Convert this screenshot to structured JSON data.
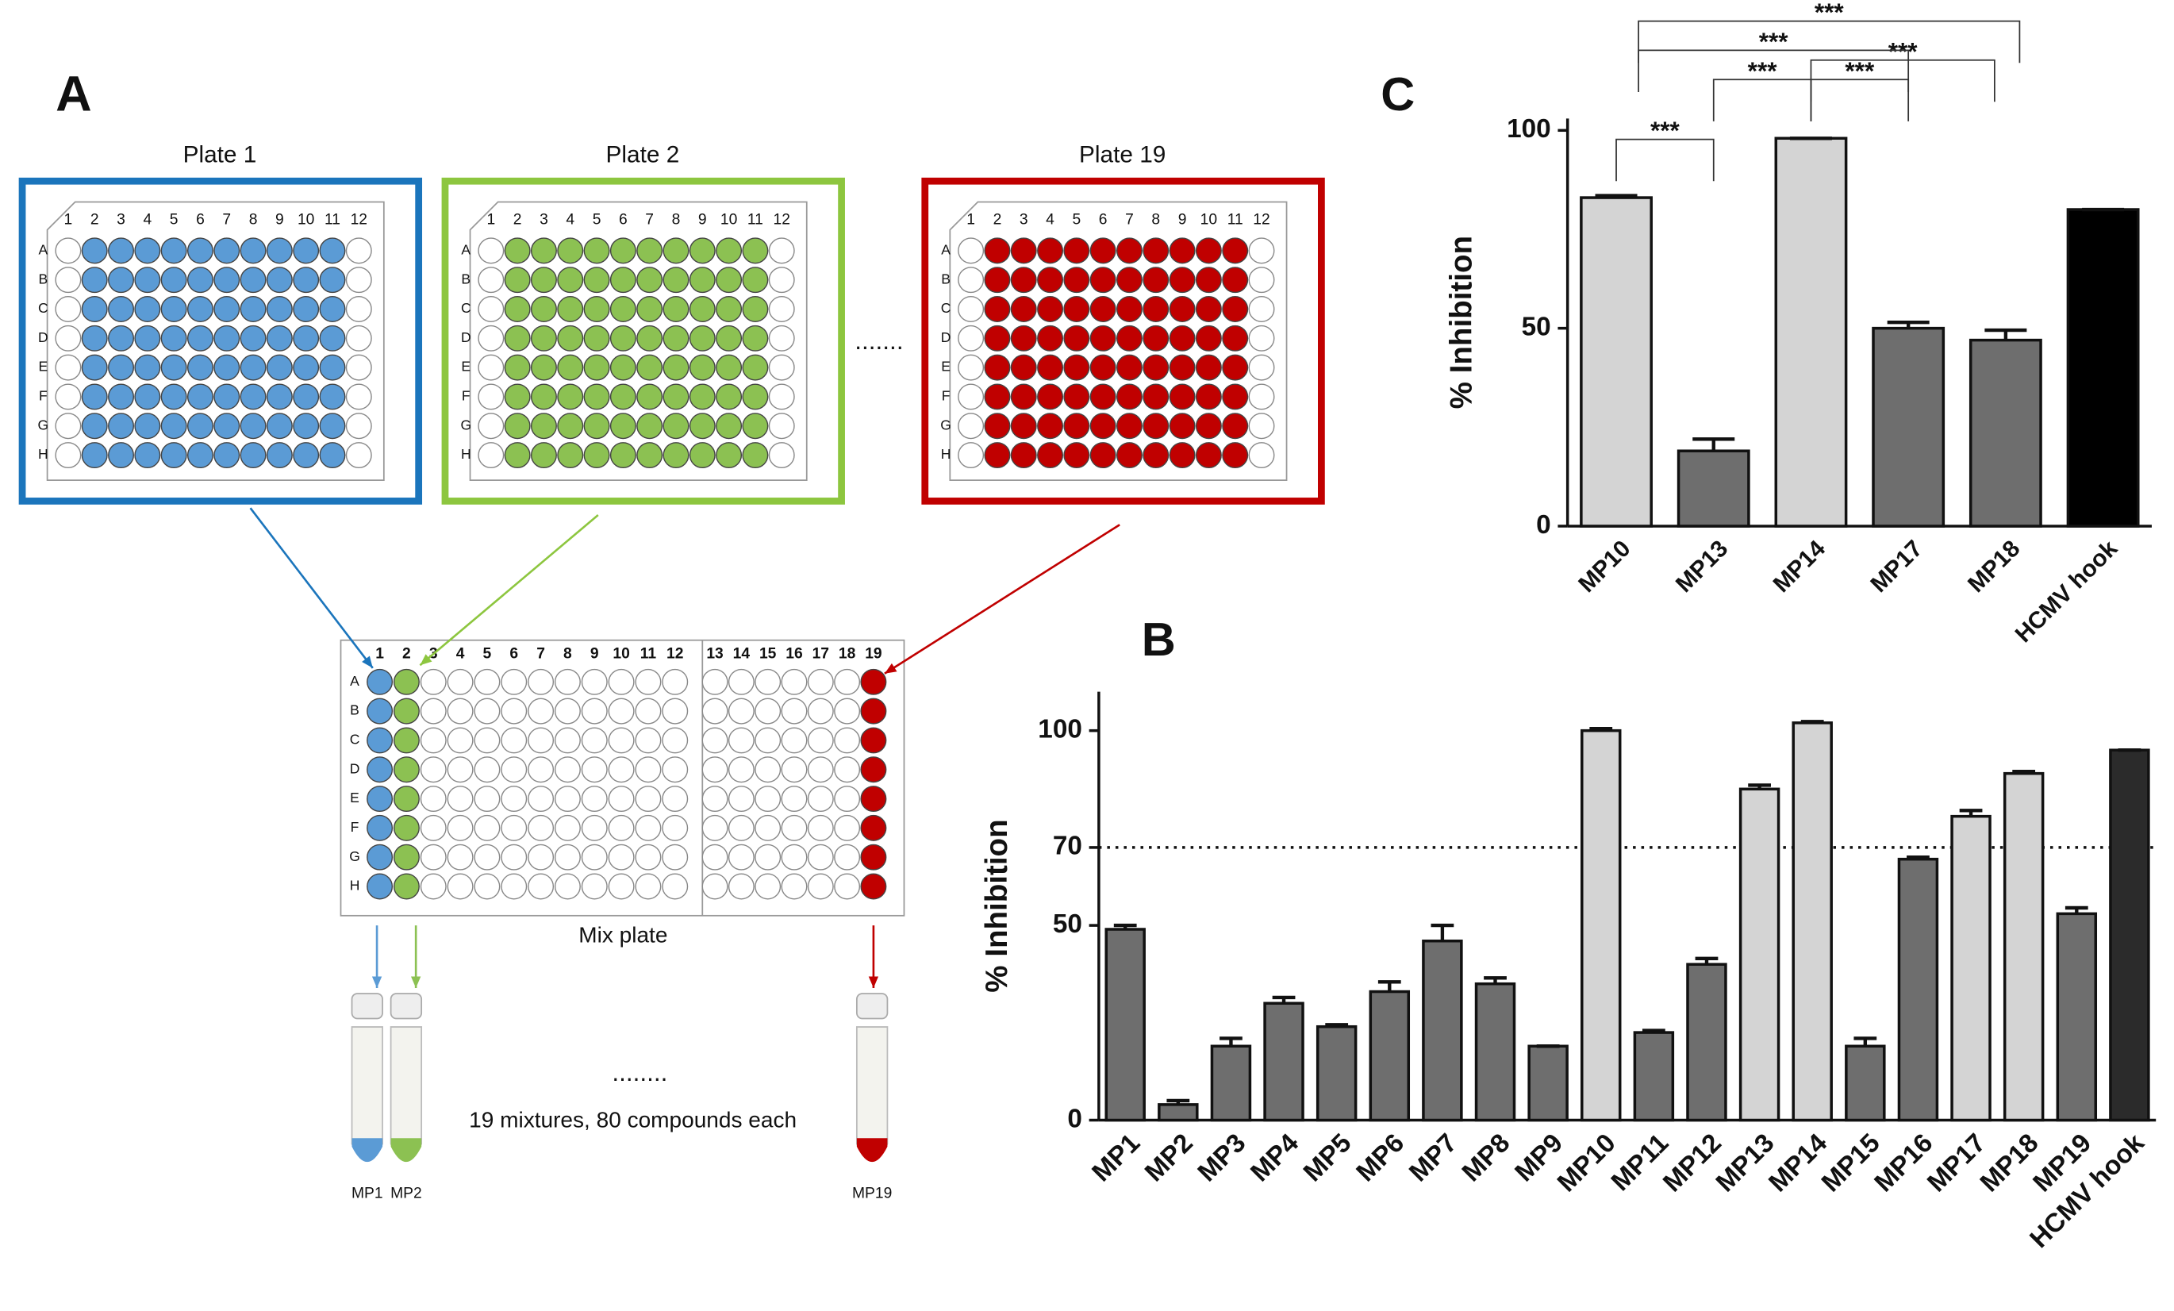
{
  "diagram": {
    "panel_label": "A",
    "plates": [
      {
        "title": "Plate 1",
        "frame_color": "#1b75bc",
        "well_color": "#5b9bd5"
      },
      {
        "title": "Plate 2",
        "frame_color": "#8dc63f",
        "well_color": "#8cc152"
      },
      {
        "title": "Plate 19",
        "frame_color": "#c00000",
        "well_color": "#c00000"
      }
    ],
    "plate_columns": [
      "1",
      "2",
      "3",
      "4",
      "5",
      "6",
      "7",
      "8",
      "9",
      "10",
      "11",
      "12"
    ],
    "plate_rows": [
      "A",
      "B",
      "C",
      "D",
      "E",
      "F",
      "G",
      "H"
    ],
    "plates_ellipsis": ".......",
    "mix_plate": {
      "label": "Mix plate",
      "columns": [
        "1",
        "2",
        "3",
        "4",
        "5",
        "6",
        "7",
        "8",
        "9",
        "10",
        "11",
        "12",
        "13",
        "14",
        "15",
        "16",
        "17",
        "18",
        "19"
      ]
    },
    "tubes": [
      "MP1",
      "MP2",
      "MP19"
    ],
    "tubes_ellipsis": "........",
    "caption": "19 mixtures, 80 compounds each"
  },
  "chart_data": [
    {
      "type": "bar",
      "title": "B",
      "y_label": "% Inhibition",
      "categories": [
        "MP1",
        "MP2",
        "MP3",
        "MP4",
        "MP5",
        "MP6",
        "MP7",
        "MP8",
        "MP9",
        "MP10",
        "MP11",
        "MP12",
        "MP13",
        "MP14",
        "MP15",
        "MP16",
        "MP17",
        "MP18",
        "MP19",
        "HCMV hook"
      ],
      "values": [
        49,
        4,
        19,
        30,
        24,
        33,
        46,
        35,
        19,
        100,
        22.5,
        40,
        85,
        102,
        19,
        67,
        78,
        89,
        53,
        95
      ],
      "errors": [
        1,
        1,
        2,
        1.5,
        0.5,
        2.5,
        4,
        1.5,
        0,
        0.5,
        0.5,
        1.5,
        1,
        0.3,
        2,
        0.5,
        1.5,
        0.5,
        1.5,
        0
      ],
      "colors": [
        "#6e6e6e",
        "#6e6e6e",
        "#6e6e6e",
        "#6e6e6e",
        "#6e6e6e",
        "#6e6e6e",
        "#6e6e6e",
        "#6e6e6e",
        "#6e6e6e",
        "#d4d4d4",
        "#6e6e6e",
        "#6e6e6e",
        "#d4d4d4",
        "#d4d4d4",
        "#6e6e6e",
        "#6e6e6e",
        "#d4d4d4",
        "#d4d4d4",
        "#6e6e6e",
        "#2b2b2b"
      ],
      "ylim": [
        0,
        110
      ],
      "yticks": [
        0,
        50,
        70,
        100
      ],
      "reference_line": {
        "value": 70,
        "style": "dotted"
      }
    },
    {
      "type": "bar",
      "title": "C",
      "y_label": "% Inhibition",
      "categories": [
        "MP10",
        "MP13",
        "MP14",
        "MP17",
        "MP18",
        "HCMV hook"
      ],
      "values": [
        83,
        19,
        98,
        50,
        47,
        80
      ],
      "errors": [
        0.5,
        3,
        0,
        1.5,
        2.5,
        0
      ],
      "colors": [
        "#d4d4d4",
        "#6e6e6e",
        "#d4d4d4",
        "#6e6e6e",
        "#6e6e6e",
        "#000000"
      ],
      "ylim": [
        0,
        103
      ],
      "yticks": [
        0,
        50,
        100
      ],
      "significance": [
        {
          "pair": [
            0,
            1
          ],
          "label": "***"
        },
        {
          "pair": [
            1,
            2
          ],
          "label": "***"
        },
        {
          "pair": [
            2,
            3
          ],
          "label": "***"
        },
        {
          "pair": [
            2,
            4
          ],
          "label": "***"
        },
        {
          "pair": [
            0,
            3
          ],
          "label": "***"
        },
        {
          "pair": [
            0,
            4
          ],
          "label": "***"
        }
      ]
    }
  ]
}
